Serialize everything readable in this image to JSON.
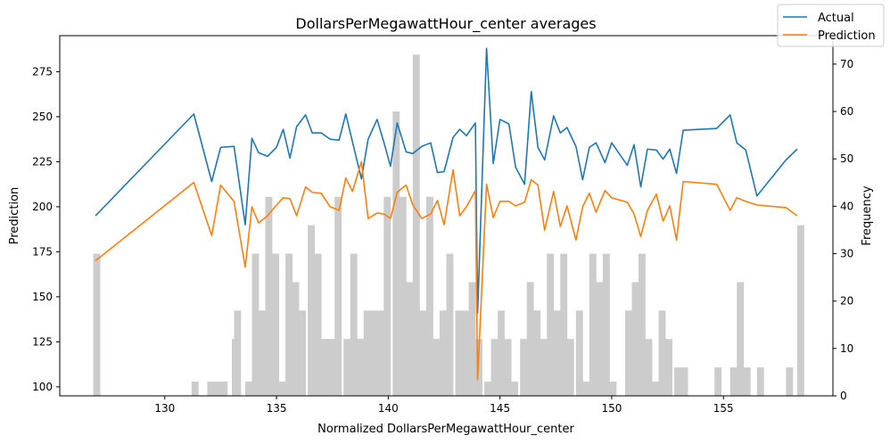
{
  "chart_data": {
    "type": "line",
    "title": "DollarsPerMegawattHour_center averages",
    "xlabel": "Normalized DollarsPerMegawattHour_center",
    "ylabel": "Prediction",
    "y2label": "Frequency",
    "xlim": [
      125.3,
      159.9
    ],
    "ylim": [
      95,
      295
    ],
    "y2lim": [
      0,
      76
    ],
    "xticks": [
      130,
      135,
      140,
      145,
      150,
      155
    ],
    "yticks": [
      100,
      125,
      150,
      175,
      200,
      225,
      250,
      275
    ],
    "y2ticks": [
      0,
      10,
      20,
      30,
      40,
      50,
      60,
      70
    ],
    "legend_position": "top-right",
    "series": [
      {
        "name": "Actual",
        "color": "#1f77b4",
        "points": [
          [
            126.9,
            195
          ],
          [
            131.3,
            251.5
          ],
          [
            132.1,
            214
          ],
          [
            132.5,
            233
          ],
          [
            133.1,
            233.5
          ],
          [
            133.6,
            190
          ],
          [
            133.9,
            238
          ],
          [
            134.2,
            230
          ],
          [
            134.6,
            228
          ],
          [
            135.0,
            233
          ],
          [
            135.3,
            243
          ],
          [
            135.6,
            227
          ],
          [
            135.9,
            244.5
          ],
          [
            136.3,
            251
          ],
          [
            136.6,
            241
          ],
          [
            137.0,
            241
          ],
          [
            137.4,
            237.5
          ],
          [
            137.8,
            237
          ],
          [
            138.1,
            251.5
          ],
          [
            138.4,
            236
          ],
          [
            138.8,
            215.5
          ],
          [
            139.1,
            237.5
          ],
          [
            139.5,
            248.5
          ],
          [
            139.8,
            236
          ],
          [
            140.1,
            222.5
          ],
          [
            140.4,
            246.5
          ],
          [
            140.8,
            230.5
          ],
          [
            141.1,
            229.5
          ],
          [
            141.5,
            233.5
          ],
          [
            141.9,
            235.5
          ],
          [
            142.2,
            219
          ],
          [
            142.5,
            219.5
          ],
          [
            142.9,
            238.5
          ],
          [
            143.2,
            243
          ],
          [
            143.5,
            239.5
          ],
          [
            143.9,
            246.5
          ],
          [
            144.0,
            141
          ],
          [
            144.4,
            288
          ],
          [
            144.7,
            224
          ],
          [
            145.0,
            248.5
          ],
          [
            145.4,
            246
          ],
          [
            145.7,
            222
          ],
          [
            146.1,
            212.5
          ],
          [
            146.4,
            264
          ],
          [
            146.7,
            233
          ],
          [
            147.0,
            226
          ],
          [
            147.4,
            250.5
          ],
          [
            147.7,
            241
          ],
          [
            148.0,
            244
          ],
          [
            148.4,
            233.5
          ],
          [
            148.7,
            215
          ],
          [
            149.0,
            233
          ],
          [
            149.3,
            235.5
          ],
          [
            149.7,
            224.5
          ],
          [
            150.0,
            235.5
          ],
          [
            150.7,
            223
          ],
          [
            151.0,
            234.5
          ],
          [
            151.3,
            211
          ],
          [
            151.6,
            232
          ],
          [
            152.0,
            231.5
          ],
          [
            152.3,
            226.5
          ],
          [
            152.6,
            232
          ],
          [
            152.9,
            218.5
          ],
          [
            153.2,
            242.5
          ],
          [
            154.7,
            243.5
          ],
          [
            155.3,
            251
          ],
          [
            155.6,
            235.5
          ],
          [
            156.0,
            231.5
          ],
          [
            156.5,
            206
          ],
          [
            157.8,
            226
          ],
          [
            158.3,
            232
          ]
        ]
      },
      {
        "name": "Prediction",
        "color": "#ff7f0e",
        "points": [
          [
            126.9,
            170
          ],
          [
            131.3,
            213.5
          ],
          [
            132.1,
            184
          ],
          [
            132.5,
            212
          ],
          [
            133.1,
            203
          ],
          [
            133.6,
            166.5
          ],
          [
            133.9,
            200
          ],
          [
            134.2,
            191
          ],
          [
            134.6,
            195
          ],
          [
            135.0,
            201
          ],
          [
            135.3,
            205
          ],
          [
            135.6,
            204.5
          ],
          [
            135.9,
            195
          ],
          [
            136.3,
            211
          ],
          [
            136.6,
            208
          ],
          [
            137.0,
            207.5
          ],
          [
            137.4,
            200
          ],
          [
            137.8,
            198
          ],
          [
            138.1,
            216
          ],
          [
            138.4,
            208.5
          ],
          [
            138.8,
            225
          ],
          [
            139.1,
            193.5
          ],
          [
            139.5,
            196.5
          ],
          [
            139.8,
            196
          ],
          [
            140.1,
            193.5
          ],
          [
            140.4,
            208
          ],
          [
            140.8,
            212
          ],
          [
            141.1,
            201
          ],
          [
            141.5,
            193.5
          ],
          [
            141.9,
            196
          ],
          [
            142.2,
            203.5
          ],
          [
            142.5,
            190
          ],
          [
            142.9,
            220.5
          ],
          [
            143.2,
            195
          ],
          [
            143.5,
            200
          ],
          [
            143.9,
            209
          ],
          [
            144.0,
            104
          ],
          [
            144.4,
            212.5
          ],
          [
            144.7,
            194
          ],
          [
            145.0,
            203
          ],
          [
            145.4,
            203
          ],
          [
            145.7,
            200.5
          ],
          [
            146.1,
            202.5
          ],
          [
            146.4,
            215
          ],
          [
            146.7,
            212
          ],
          [
            147.0,
            187
          ],
          [
            147.4,
            208.5
          ],
          [
            147.7,
            189
          ],
          [
            148.0,
            200.5
          ],
          [
            148.4,
            181.5
          ],
          [
            148.7,
            200
          ],
          [
            149.0,
            207.5
          ],
          [
            149.3,
            197
          ],
          [
            149.7,
            209
          ],
          [
            150.0,
            205
          ],
          [
            150.7,
            202.5
          ],
          [
            151.0,
            196
          ],
          [
            151.3,
            183.5
          ],
          [
            151.6,
            198
          ],
          [
            152.0,
            207
          ],
          [
            152.3,
            192
          ],
          [
            152.6,
            200.5
          ],
          [
            152.9,
            181.5
          ],
          [
            153.2,
            214
          ],
          [
            154.7,
            212.5
          ],
          [
            155.3,
            198
          ],
          [
            155.6,
            205
          ],
          [
            156.0,
            203
          ],
          [
            156.5,
            201
          ],
          [
            157.8,
            199.5
          ],
          [
            158.3,
            195
          ]
        ]
      }
    ],
    "histogram": {
      "color": "#cccccc",
      "bin_width": 0.315,
      "bins": [
        [
          126.8,
          30
        ],
        [
          131.2,
          3
        ],
        [
          131.9,
          3
        ],
        [
          132.2,
          3
        ],
        [
          132.5,
          3
        ],
        [
          133.0,
          12
        ],
        [
          133.1,
          18
        ],
        [
          133.6,
          3
        ],
        [
          133.9,
          30
        ],
        [
          134.2,
          18
        ],
        [
          134.5,
          42
        ],
        [
          134.8,
          30
        ],
        [
          135.1,
          3
        ],
        [
          135.4,
          30
        ],
        [
          135.7,
          24
        ],
        [
          136.0,
          18
        ],
        [
          136.4,
          36
        ],
        [
          136.7,
          30
        ],
        [
          137.0,
          12
        ],
        [
          137.3,
          12
        ],
        [
          137.6,
          42
        ],
        [
          138.0,
          12
        ],
        [
          138.3,
          30
        ],
        [
          138.6,
          12
        ],
        [
          138.9,
          18
        ],
        [
          139.2,
          18
        ],
        [
          139.5,
          18
        ],
        [
          139.8,
          42
        ],
        [
          140.2,
          60
        ],
        [
          140.5,
          42
        ],
        [
          140.8,
          24
        ],
        [
          141.1,
          72
        ],
        [
          141.4,
          18
        ],
        [
          141.7,
          42
        ],
        [
          142.0,
          12
        ],
        [
          142.3,
          18
        ],
        [
          142.6,
          30
        ],
        [
          143.0,
          18
        ],
        [
          143.3,
          18
        ],
        [
          143.6,
          24
        ],
        [
          143.9,
          12
        ],
        [
          144.3,
          3
        ],
        [
          144.6,
          12
        ],
        [
          144.9,
          18
        ],
        [
          145.2,
          12
        ],
        [
          145.5,
          3
        ],
        [
          145.9,
          12
        ],
        [
          146.2,
          24
        ],
        [
          146.5,
          18
        ],
        [
          146.8,
          12
        ],
        [
          147.1,
          30
        ],
        [
          147.4,
          18
        ],
        [
          147.7,
          30
        ],
        [
          148.0,
          12
        ],
        [
          148.4,
          18
        ],
        [
          148.7,
          3
        ],
        [
          149.0,
          30
        ],
        [
          149.3,
          24
        ],
        [
          149.6,
          30
        ],
        [
          149.9,
          3
        ],
        [
          150.6,
          18
        ],
        [
          150.9,
          24
        ],
        [
          151.2,
          30
        ],
        [
          151.5,
          12
        ],
        [
          151.8,
          3
        ],
        [
          152.1,
          18
        ],
        [
          152.4,
          12
        ],
        [
          152.8,
          6
        ],
        [
          153.1,
          6
        ],
        [
          154.6,
          6
        ],
        [
          155.3,
          6
        ],
        [
          155.6,
          24
        ],
        [
          155.9,
          6
        ],
        [
          156.5,
          6
        ],
        [
          157.8,
          6
        ],
        [
          158.3,
          36
        ]
      ]
    }
  },
  "legend": {
    "entries": [
      "Actual",
      "Prediction"
    ]
  }
}
